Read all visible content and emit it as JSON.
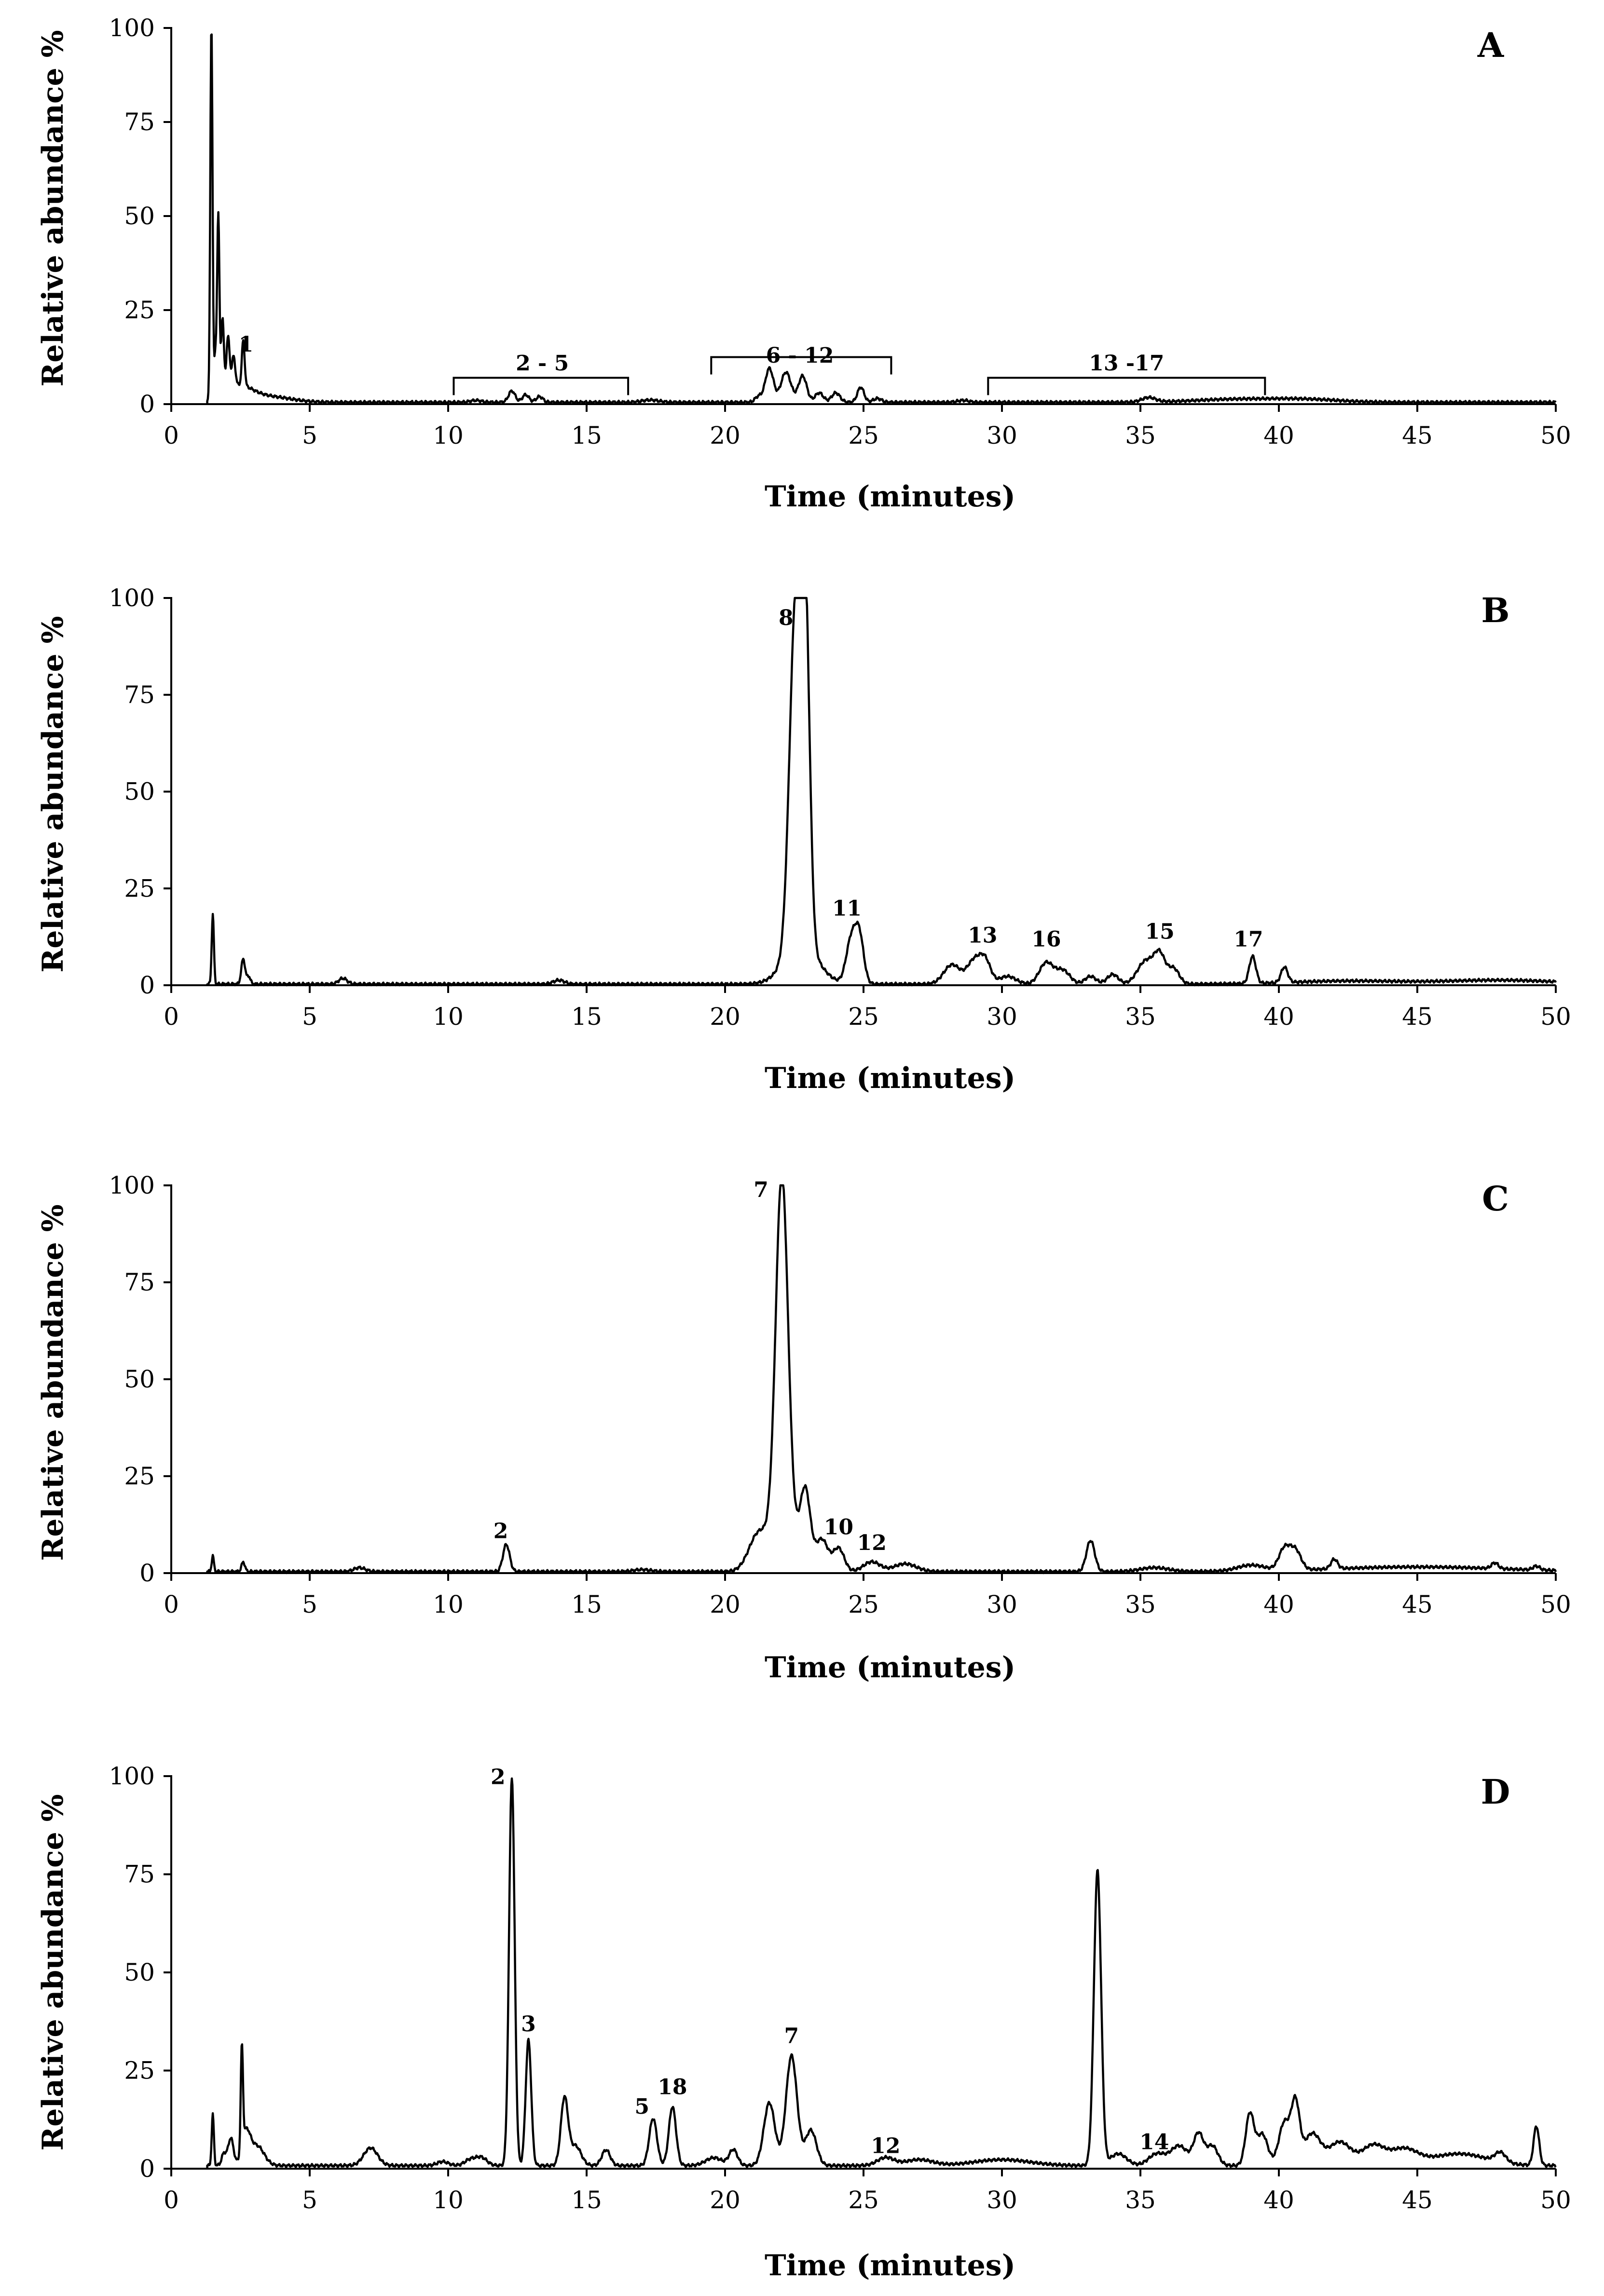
{
  "chart_data": [
    {
      "type": "line",
      "panel_label": "A",
      "xlabel": "Time (minutes)",
      "ylabel": "Relative abundance %",
      "xlim": [
        0,
        50
      ],
      "ylim": [
        0,
        100
      ],
      "xticks": [
        "0",
        "5",
        "10",
        "15",
        "20",
        "25",
        "30",
        "35",
        "40",
        "45",
        "50"
      ],
      "yticks": [
        "0",
        "25",
        "50",
        "75",
        "100"
      ],
      "baseline": 0.5,
      "peaks": [
        {
          "t": 1.45,
          "h": 100,
          "w": 0.04
        },
        {
          "t": 1.6,
          "h": 12,
          "w": 0.05
        },
        {
          "t": 1.7,
          "h": 47,
          "w": 0.04
        },
        {
          "t": 1.85,
          "h": 20,
          "w": 0.05
        },
        {
          "t": 2.05,
          "h": 14,
          "w": 0.06
        },
        {
          "t": 2.25,
          "h": 8,
          "w": 0.06
        },
        {
          "t": 2.6,
          "h": 12,
          "w": 0.05
        },
        {
          "t": 2.4,
          "h": 4,
          "w": 0.5
        },
        {
          "t": 3.5,
          "h": 1.5,
          "w": 0.8
        },
        {
          "t": 12.3,
          "h": 3,
          "w": 0.12
        },
        {
          "t": 12.8,
          "h": 2,
          "w": 0.12
        },
        {
          "t": 13.3,
          "h": 1.5,
          "w": 0.12
        },
        {
          "t": 11,
          "h": 0.5,
          "w": 0.2
        },
        {
          "t": 17.3,
          "h": 0.6,
          "w": 0.3
        },
        {
          "t": 21.2,
          "h": 1.5,
          "w": 0.12
        },
        {
          "t": 21.6,
          "h": 9,
          "w": 0.15
        },
        {
          "t": 22.2,
          "h": 8,
          "w": 0.18
        },
        {
          "t": 22.8,
          "h": 7,
          "w": 0.15
        },
        {
          "t": 23.4,
          "h": 2.5,
          "w": 0.15
        },
        {
          "t": 24.0,
          "h": 2.5,
          "w": 0.15
        },
        {
          "t": 24.9,
          "h": 4,
          "w": 0.12
        },
        {
          "t": 25.5,
          "h": 1,
          "w": 0.15
        },
        {
          "t": 28.6,
          "h": 0.5,
          "w": 0.2
        },
        {
          "t": 35.3,
          "h": 1.2,
          "w": 0.25
        },
        {
          "t": 38.5,
          "h": 0.8,
          "w": 1.5
        },
        {
          "t": 41,
          "h": 0.7,
          "w": 1.2
        }
      ],
      "annotations": [
        {
          "text": "1",
          "x": 2.7,
          "y": 14
        },
        {
          "text": "2 - 5",
          "x": 13.4,
          "y": 9
        },
        {
          "text": "6 - 12",
          "x": 22.7,
          "y": 11
        },
        {
          "text": "13 -17",
          "x": 34.5,
          "y": 9
        }
      ],
      "brackets": [
        {
          "x1": 10.2,
          "x2": 16.5,
          "y": 7
        },
        {
          "x1": 19.5,
          "x2": 26,
          "y": 12.5
        },
        {
          "x1": 29.5,
          "x2": 39.5,
          "y": 7
        }
      ]
    },
    {
      "type": "line",
      "panel_label": "B",
      "xlabel": "Time (minutes)",
      "ylabel": "Relative abundance %",
      "xlim": [
        0,
        50
      ],
      "ylim": [
        0,
        100
      ],
      "xticks": [
        "0",
        "5",
        "10",
        "15",
        "20",
        "25",
        "30",
        "35",
        "40",
        "45",
        "50"
      ],
      "yticks": [
        "0",
        "25",
        "50",
        "75",
        "100"
      ],
      "baseline": 0.3,
      "peaks": [
        {
          "t": 1.5,
          "h": 18,
          "w": 0.04
        },
        {
          "t": 2.6,
          "h": 6.5,
          "w": 0.07
        },
        {
          "t": 2.8,
          "h": 2,
          "w": 0.06
        },
        {
          "t": 6.2,
          "h": 1.5,
          "w": 0.15
        },
        {
          "t": 14,
          "h": 1,
          "w": 0.2
        },
        {
          "t": 22.55,
          "h": 88,
          "w": 0.22
        },
        {
          "t": 22.9,
          "h": 78,
          "w": 0.16
        },
        {
          "t": 22.75,
          "h": 10,
          "w": 0.6
        },
        {
          "t": 24.55,
          "h": 11,
          "w": 0.18
        },
        {
          "t": 24.85,
          "h": 12,
          "w": 0.16
        },
        {
          "t": 28.2,
          "h": 5,
          "w": 0.3
        },
        {
          "t": 29.0,
          "h": 6,
          "w": 0.25
        },
        {
          "t": 29.4,
          "h": 5.5,
          "w": 0.2
        },
        {
          "t": 30.2,
          "h": 2,
          "w": 0.3
        },
        {
          "t": 31.6,
          "h": 5.5,
          "w": 0.25
        },
        {
          "t": 32.2,
          "h": 3.5,
          "w": 0.25
        },
        {
          "t": 33.2,
          "h": 2,
          "w": 0.2
        },
        {
          "t": 34,
          "h": 2.5,
          "w": 0.2
        },
        {
          "t": 35.2,
          "h": 6,
          "w": 0.3
        },
        {
          "t": 35.7,
          "h": 7,
          "w": 0.2
        },
        {
          "t": 36.2,
          "h": 4,
          "w": 0.2
        },
        {
          "t": 39.05,
          "h": 7,
          "w": 0.12
        },
        {
          "t": 40.2,
          "h": 4,
          "w": 0.12
        },
        {
          "t": 42.5,
          "h": 0.8,
          "w": 2
        },
        {
          "t": 48,
          "h": 1,
          "w": 2
        }
      ],
      "annotations": [
        {
          "text": "8",
          "x": 22.2,
          "y": 93
        },
        {
          "text": "11",
          "x": 24.4,
          "y": 18
        },
        {
          "text": "13",
          "x": 29.3,
          "y": 11
        },
        {
          "text": "16",
          "x": 31.6,
          "y": 10
        },
        {
          "text": "15",
          "x": 35.7,
          "y": 12
        },
        {
          "text": "17",
          "x": 38.9,
          "y": 10
        }
      ],
      "brackets": []
    },
    {
      "type": "line",
      "panel_label": "C",
      "xlabel": "Time (minutes)",
      "ylabel": "Relative abundance %",
      "xlim": [
        0,
        50
      ],
      "ylim": [
        0,
        100
      ],
      "xticks": [
        "0",
        "5",
        "10",
        "15",
        "20",
        "25",
        "30",
        "35",
        "40",
        "45",
        "50"
      ],
      "yticks": [
        "0",
        "25",
        "50",
        "75",
        "100"
      ],
      "baseline": 0.4,
      "peaks": [
        {
          "t": 1.5,
          "h": 4,
          "w": 0.04
        },
        {
          "t": 2.6,
          "h": 2.5,
          "w": 0.06
        },
        {
          "t": 6.8,
          "h": 1,
          "w": 0.2
        },
        {
          "t": 12.1,
          "h": 7,
          "w": 0.12
        },
        {
          "t": 17,
          "h": 0.5,
          "w": 0.3
        },
        {
          "t": 21.2,
          "h": 9,
          "w": 0.35
        },
        {
          "t": 22.05,
          "h": 93,
          "w": 0.22
        },
        {
          "t": 22.2,
          "h": 10,
          "w": 0.5
        },
        {
          "t": 22.9,
          "h": 18,
          "w": 0.18
        },
        {
          "t": 23.5,
          "h": 8,
          "w": 0.22
        },
        {
          "t": 24.1,
          "h": 6,
          "w": 0.2
        },
        {
          "t": 25.3,
          "h": 2.5,
          "w": 0.3
        },
        {
          "t": 26.5,
          "h": 2,
          "w": 0.4
        },
        {
          "t": 33.2,
          "h": 8,
          "w": 0.15
        },
        {
          "t": 35.5,
          "h": 1,
          "w": 0.5
        },
        {
          "t": 39,
          "h": 1.5,
          "w": 0.5
        },
        {
          "t": 40.2,
          "h": 5.5,
          "w": 0.2
        },
        {
          "t": 40.6,
          "h": 5,
          "w": 0.2
        },
        {
          "t": 42,
          "h": 2.5,
          "w": 0.12
        },
        {
          "t": 45,
          "h": 1.2,
          "w": 3
        },
        {
          "t": 47.8,
          "h": 1.5,
          "w": 0.12
        },
        {
          "t": 49.3,
          "h": 1,
          "w": 0.12
        }
      ],
      "annotations": [
        {
          "text": "7",
          "x": 21.3,
          "y": 97
        },
        {
          "text": "2",
          "x": 11.9,
          "y": 9
        },
        {
          "text": "10",
          "x": 24.1,
          "y": 10
        },
        {
          "text": "12",
          "x": 25.3,
          "y": 6
        }
      ],
      "brackets": []
    },
    {
      "type": "line",
      "panel_label": "D",
      "xlabel": "Time (minutes)",
      "ylabel": "Relative abundance %",
      "xlim": [
        0,
        50
      ],
      "ylim": [
        0,
        100
      ],
      "xticks": [
        "0",
        "5",
        "10",
        "15",
        "20",
        "25",
        "30",
        "35",
        "40",
        "45",
        "50"
      ],
      "yticks": [
        "0",
        "25",
        "50",
        "75",
        "100"
      ],
      "baseline": 0.8,
      "peaks": [
        {
          "t": 1.5,
          "h": 13,
          "w": 0.04
        },
        {
          "t": 1.9,
          "h": 3,
          "w": 0.08
        },
        {
          "t": 2.15,
          "h": 7,
          "w": 0.1
        },
        {
          "t": 2.55,
          "h": 26,
          "w": 0.04
        },
        {
          "t": 2.7,
          "h": 8,
          "w": 0.15
        },
        {
          "t": 3.1,
          "h": 5,
          "w": 0.25
        },
        {
          "t": 7.2,
          "h": 4.5,
          "w": 0.25
        },
        {
          "t": 9.8,
          "h": 1,
          "w": 0.2
        },
        {
          "t": 10.8,
          "h": 1.5,
          "w": 0.2
        },
        {
          "t": 11.2,
          "h": 2,
          "w": 0.2
        },
        {
          "t": 12.3,
          "h": 99,
          "w": 0.1
        },
        {
          "t": 12.9,
          "h": 32,
          "w": 0.1
        },
        {
          "t": 14.2,
          "h": 17,
          "w": 0.13
        },
        {
          "t": 14.6,
          "h": 5,
          "w": 0.2
        },
        {
          "t": 15.7,
          "h": 4,
          "w": 0.15
        },
        {
          "t": 17.4,
          "h": 12,
          "w": 0.14
        },
        {
          "t": 18.1,
          "h": 15,
          "w": 0.13
        },
        {
          "t": 19.6,
          "h": 2,
          "w": 0.3
        },
        {
          "t": 20.3,
          "h": 4,
          "w": 0.15
        },
        {
          "t": 21.6,
          "h": 16,
          "w": 0.2
        },
        {
          "t": 22.4,
          "h": 28,
          "w": 0.2
        },
        {
          "t": 23.1,
          "h": 9,
          "w": 0.2
        },
        {
          "t": 25.8,
          "h": 2,
          "w": 0.3
        },
        {
          "t": 27,
          "h": 1.5,
          "w": 0.5
        },
        {
          "t": 30,
          "h": 1.5,
          "w": 1
        },
        {
          "t": 33.45,
          "h": 75,
          "w": 0.13
        },
        {
          "t": 34.2,
          "h": 3,
          "w": 0.3
        },
        {
          "t": 35.6,
          "h": 3,
          "w": 0.3
        },
        {
          "t": 36.4,
          "h": 5,
          "w": 0.3
        },
        {
          "t": 37.1,
          "h": 8,
          "w": 0.18
        },
        {
          "t": 37.6,
          "h": 5,
          "w": 0.2
        },
        {
          "t": 38.95,
          "h": 13,
          "w": 0.15
        },
        {
          "t": 39.4,
          "h": 8,
          "w": 0.2
        },
        {
          "t": 40.2,
          "h": 11,
          "w": 0.2
        },
        {
          "t": 40.6,
          "h": 15,
          "w": 0.15
        },
        {
          "t": 41.2,
          "h": 8,
          "w": 0.3
        },
        {
          "t": 42.2,
          "h": 6,
          "w": 0.4
        },
        {
          "t": 43.4,
          "h": 5,
          "w": 0.4
        },
        {
          "t": 44.5,
          "h": 4,
          "w": 0.5
        },
        {
          "t": 46.5,
          "h": 3,
          "w": 1
        },
        {
          "t": 48,
          "h": 2.5,
          "w": 0.2
        },
        {
          "t": 49.3,
          "h": 10,
          "w": 0.1
        }
      ],
      "annotations": [
        {
          "text": "2",
          "x": 11.8,
          "y": 98
        },
        {
          "text": "3",
          "x": 12.9,
          "y": 35
        },
        {
          "text": "5",
          "x": 17.0,
          "y": 14
        },
        {
          "text": "18",
          "x": 18.1,
          "y": 19
        },
        {
          "text": "7",
          "x": 22.4,
          "y": 32
        },
        {
          "text": "12",
          "x": 25.8,
          "y": 4
        },
        {
          "text": "14",
          "x": 35.5,
          "y": 5
        }
      ],
      "brackets": []
    }
  ]
}
